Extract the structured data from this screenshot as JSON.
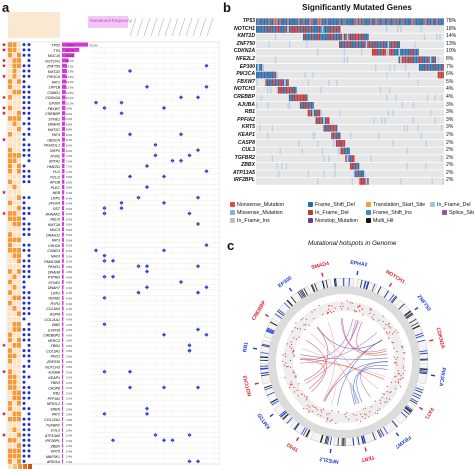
{
  "labels": {
    "a": "a",
    "b": "b",
    "c": "c"
  },
  "panel_a": {
    "header_label": "Mutational frequency",
    "frequency_scale_top": "75.5%",
    "genes": [
      "TP53",
      "TTN",
      "MUC16",
      "NOTCH1",
      "ZNF750",
      "KMT2D",
      "PIK3CA",
      "FAT1",
      "LRP1B",
      "CSMD1",
      "CDKN2A",
      "EP300",
      "FBXW7",
      "CREBBP",
      "SYNE1",
      "DNAH5",
      "KMT2C",
      "FAT4",
      "OBSCN",
      "PKHD1L1",
      "XIRP2",
      "RYR2",
      "SPTA1",
      "HMCN1",
      "FLG",
      "PCLO",
      "APOB",
      "PLEC",
      "NEB",
      "LRP2",
      "ZFHX4",
      "DST",
      "AHNAK2",
      "RELN",
      "KMT2A",
      "MUC4",
      "DNAH11",
      "FAT3",
      "USH2A",
      "CSMD3",
      "NAV3",
      "FAM135B",
      "PKHD1",
      "DNAH8",
      "PTPRD",
      "SYNE2",
      "DNAH7",
      "LRP1",
      "TENM2",
      "RYR3",
      "COL6A3",
      "ASPM",
      "COL11A1",
      "DMD",
      "EXPH5",
      "CREBBP2",
      "HERC2",
      "FBN2",
      "COL5A1",
      "PKD1",
      "ZNF536",
      "NOTCH3",
      "AJUBA",
      "KEAP1",
      "FBN3",
      "CASP8",
      "RB1",
      "PPFIA2",
      "NFE2L2",
      "SPEN",
      "FAT2",
      "COL22A1",
      "TGFBR2",
      "CUL3",
      "ATP13A5",
      "IRF2BPL",
      "ZBBX",
      "KRT5",
      "MAP3K1",
      "ARID1A"
    ],
    "frequencies": [
      "75.5%",
      "50.1%",
      "35.9%",
      "18.7%",
      "14.3%",
      "13.9%",
      "13.5%",
      "12.4%",
      "12.0%",
      "10.8%",
      "10.4%",
      "10.0%",
      "9.6%",
      "9.6%",
      "9.2%",
      "8.8%",
      "8.8%",
      "8.4%",
      "8.4%",
      "8.0%",
      "8.0%",
      "7.6%",
      "7.6%",
      "7.2%",
      "7.2%",
      "6.8%",
      "6.8%",
      "6.8%",
      "6.4%",
      "6.4%",
      "6.4%",
      "6.0%",
      "6.0%",
      "6.0%",
      "5.6%",
      "5.6%",
      "5.6%",
      "5.6%",
      "5.2%",
      "5.2%",
      "5.2%",
      "5.2%",
      "4.8%",
      "4.8%",
      "4.8%",
      "4.8%",
      "4.4%",
      "4.4%",
      "4.4%",
      "4.4%",
      "4.4%",
      "4.0%",
      "4.0%",
      "4.0%",
      "4.0%",
      "4.0%",
      "3.6%",
      "3.6%",
      "3.6%",
      "3.6%",
      "3.6%",
      "3.6%",
      "3.2%",
      "3.2%",
      "3.2%",
      "3.2%",
      "3.2%",
      "3.2%",
      "2.8%",
      "2.8%",
      "2.8%",
      "2.8%",
      "2.8%",
      "2.8%",
      "2.4%",
      "2.4%",
      "2.4%",
      "2.4%",
      "2.4%",
      "2.4%"
    ],
    "colors": {
      "dot_blue": "#1a2fd0",
      "heat_orange": "#f59a3a",
      "bar_magenta": "#d838d8",
      "star_red": "#d8242c"
    }
  },
  "panel_b": {
    "title": "Significantly Mutated Genes",
    "genes": [
      "TP53",
      "NOTCH1",
      "KMT2D",
      "ZNF750",
      "CDKN2A",
      "NFE2L2",
      "EP300",
      "PIK3CA",
      "FBXW7",
      "NOTCH3",
      "CREBBP",
      "AJUBA",
      "RB1",
      "PPFIA2",
      "KRT5",
      "KEAP1",
      "CASP8",
      "CUL3",
      "TGFBR2",
      "ZBBX",
      "ATP13A5",
      "IRF2BPL"
    ],
    "percentages": [
      "78%",
      "18%",
      "14%",
      "13%",
      "10%",
      "8%",
      "7%",
      "6%",
      "5%",
      "4%",
      "4%",
      "3%",
      "3%",
      "3%",
      "3%",
      "2%",
      "2%",
      "2%",
      "2%",
      "2%",
      "2%",
      "2%"
    ],
    "legend": [
      {
        "label": "Nonsense_Mutation",
        "color": "#e8474a",
        "shape": "star"
      },
      {
        "label": "Frame_Shift_Del",
        "color": "#1f6fb5",
        "shape": "square"
      },
      {
        "label": "Translation_Start_Site",
        "color": "#f2a336",
        "shape": "square"
      },
      {
        "label": "In_Frame_Del",
        "color": "#9bc7e8",
        "shape": "square"
      },
      {
        "label": "Splice_Site",
        "color": "#8e5aa8",
        "shape": "square"
      },
      {
        "label": "Missense_Mutation",
        "color": "#7bb6dd",
        "shape": "square"
      },
      {
        "label": "In_Frame_Del",
        "color": "#c0392b",
        "shape": "square"
      },
      {
        "label": "Frame_Shift_Ins",
        "color": "#3d8bc4",
        "shape": "square"
      },
      {
        "label": "In_Frame_Ins",
        "color": "#bfbfbf",
        "shape": "square"
      },
      {
        "label": "Nonstop_Mutation",
        "color": "#6a3d9a",
        "shape": "square"
      },
      {
        "label": "Multi_Hit",
        "color": "#111111",
        "shape": "square"
      }
    ],
    "colors": {
      "mutation_dark": "#c43a3a",
      "mutation_light": "#b9d4ea",
      "background": "#e6e6e6",
      "top_bar": "#2f6ea8"
    }
  },
  "panel_c": {
    "title": "Mutational hotspots in Genome",
    "outer_labels": [
      {
        "text": "EPHA2",
        "color": "#1f3fd0"
      },
      {
        "text": "NOTCH1",
        "color": "#d8242c"
      },
      {
        "text": "ZNF750",
        "color": "#1f3fd0"
      },
      {
        "text": "CDKN2A",
        "color": "#d8242c"
      },
      {
        "text": "PIK3CA",
        "color": "#1f3fd0"
      },
      {
        "text": "FAT1",
        "color": "#d8242c"
      },
      {
        "text": "FBXW7",
        "color": "#1f3fd0"
      },
      {
        "text": "TERT",
        "color": "#d8242c"
      },
      {
        "text": "NFE2L2",
        "color": "#1f3fd0"
      },
      {
        "text": "TP53",
        "color": "#d8242c"
      },
      {
        "text": "KMT2D",
        "color": "#1f3fd0"
      },
      {
        "text": "NOTCH3",
        "color": "#d8242c"
      },
      {
        "text": "RB1",
        "color": "#1f3fd0"
      },
      {
        "text": "CREBBP",
        "color": "#d8242c"
      },
      {
        "text": "EP300",
        "color": "#1f3fd0"
      },
      {
        "text": "SMAD4",
        "color": "#d8242c"
      }
    ],
    "colors": {
      "ring_gray": "#dcdcdc",
      "link_red": "#e23b3b",
      "link_blue": "#3a5fd0",
      "link_purple": "#9b59b6"
    }
  }
}
